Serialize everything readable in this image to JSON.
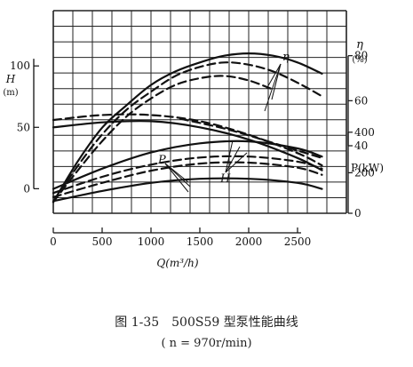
{
  "chart_data": {
    "type": "line",
    "x_axis": {
      "label": "Q(m³/h)",
      "ticks": [
        0,
        500,
        1000,
        1500,
        2000,
        2500
      ],
      "range": [
        0,
        3000
      ]
    },
    "y_axes": [
      {
        "id": "H",
        "label": "H",
        "unit": "(m)",
        "ticks": [
          0,
          50,
          100
        ],
        "range": [
          -20,
          145
        ],
        "side": "left"
      },
      {
        "id": "eta",
        "label": "η",
        "unit": "(%)",
        "ticks": [
          40,
          60,
          80
        ],
        "range": [
          10,
          100
        ],
        "side": "right"
      },
      {
        "id": "P",
        "label": "P(kW)",
        "ticks": [
          0,
          200,
          400
        ],
        "range": [
          0,
          1000
        ],
        "side": "right"
      }
    ],
    "grid": true,
    "series": [
      {
        "name": "H",
        "axis": "H",
        "style": "solid",
        "x": [
          0,
          500,
          1000,
          1500,
          2000,
          2500,
          2750
        ],
        "y": [
          50,
          54,
          55,
          50,
          40,
          25,
          15
        ]
      },
      {
        "name": "H",
        "axis": "H",
        "style": "dashed",
        "x": [
          0,
          500,
          1000,
          1500,
          2000,
          2500,
          2750
        ],
        "y": [
          56,
          60,
          60,
          55,
          44,
          29,
          19
        ]
      },
      {
        "name": "H",
        "axis": "H",
        "style": "dashed",
        "x": [
          1300,
          1800,
          2300,
          2750
        ],
        "y": [
          57,
          48,
          36,
          25
        ]
      },
      {
        "name": "η",
        "axis": "eta",
        "style": "solid",
        "x": [
          0,
          250,
          500,
          750,
          1000,
          1250,
          1500,
          1750,
          2000,
          2250,
          2500,
          2750
        ],
        "y": [
          15,
          33,
          48,
          58,
          67,
          73,
          77,
          80,
          81,
          80,
          77,
          72
        ]
      },
      {
        "name": "η",
        "axis": "eta",
        "style": "dashed",
        "x": [
          0,
          250,
          500,
          750,
          1000,
          1250,
          1500,
          1750,
          2000,
          2250,
          2500,
          2750
        ],
        "y": [
          15,
          31,
          45,
          56,
          64,
          71,
          75,
          77,
          76,
          73,
          68,
          62
        ]
      },
      {
        "name": "η",
        "axis": "eta",
        "style": "dashed",
        "x": [
          0,
          250,
          500,
          750,
          1000,
          1250,
          1500,
          1750,
          2000,
          2250
        ],
        "y": [
          15,
          29,
          42,
          53,
          61,
          67,
          70,
          71,
          69,
          65
        ]
      },
      {
        "name": "P",
        "axis": "P",
        "style": "solid",
        "x": [
          0,
          500,
          1000,
          1500,
          2000,
          2500,
          2750
        ],
        "y": [
          120,
          220,
          300,
          345,
          355,
          320,
          280
        ]
      },
      {
        "name": "P",
        "axis": "P",
        "style": "dashed",
        "x": [
          0,
          500,
          1000,
          1500,
          2000,
          2500,
          2750
        ],
        "y": [
          100,
          180,
          240,
          275,
          280,
          255,
          220
        ]
      },
      {
        "name": "P",
        "axis": "P",
        "style": "dashed",
        "x": [
          0,
          500,
          1000,
          1500,
          2000,
          2500,
          2750
        ],
        "y": [
          80,
          150,
          210,
          245,
          250,
          225,
          190
        ]
      },
      {
        "name": "P",
        "axis": "P",
        "style": "solid",
        "x": [
          0,
          500,
          1000,
          1500,
          2000,
          2500,
          2750
        ],
        "y": [
          60,
          110,
          150,
          170,
          170,
          150,
          120
        ]
      }
    ],
    "annotations": [
      "η",
      "H",
      "P"
    ],
    "caption": "图 1-35　500S59 型泵性能曲线",
    "subcaption": "( n = 970r/min)"
  }
}
